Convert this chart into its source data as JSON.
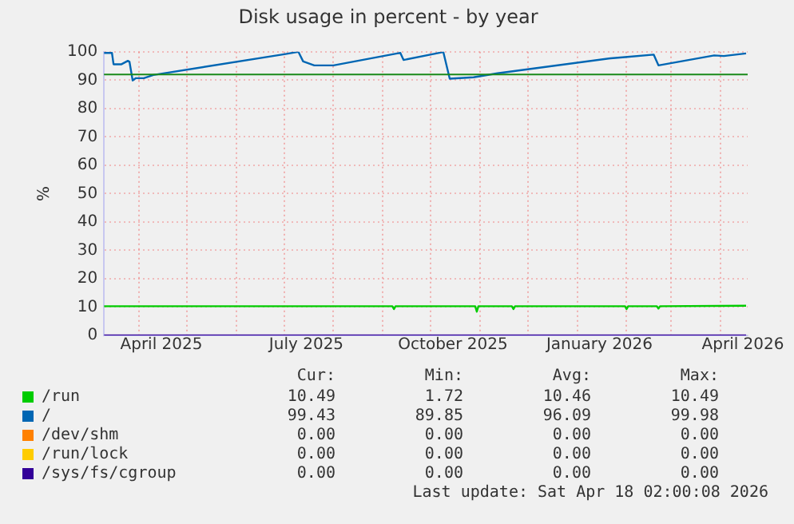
{
  "chart_data": {
    "type": "line",
    "title": "Disk usage in percent - by year",
    "ylabel": "%",
    "xlim": [
      "2025-03-10",
      "2026-04-18"
    ],
    "xticks": [
      {
        "value": "2025-04-01",
        "label": null
      },
      {
        "value": "2025-04-15",
        "label": "April 2025"
      },
      {
        "value": "2025-05-01",
        "label": null
      },
      {
        "value": "2025-06-01",
        "label": null
      },
      {
        "value": "2025-07-01",
        "label": null
      },
      {
        "value": "2025-07-15",
        "label": "July 2025"
      },
      {
        "value": "2025-08-01",
        "label": null
      },
      {
        "value": "2025-09-01",
        "label": null
      },
      {
        "value": "2025-10-01",
        "label": null
      },
      {
        "value": "2025-10-15",
        "label": "October 2025"
      },
      {
        "value": "2025-11-01",
        "label": null
      },
      {
        "value": "2025-12-01",
        "label": null
      },
      {
        "value": "2026-01-01",
        "label": null
      },
      {
        "value": "2026-01-15",
        "label": "January 2026"
      },
      {
        "value": "2026-02-01",
        "label": null
      },
      {
        "value": "2026-03-01",
        "label": null
      },
      {
        "value": "2026-04-01",
        "label": null
      },
      {
        "value": "2026-04-15",
        "label": "April 2026"
      }
    ],
    "ylim": [
      0,
      100
    ],
    "yticks": [
      0,
      10,
      20,
      30,
      40,
      50,
      60,
      70,
      80,
      90,
      100
    ],
    "grid": true,
    "legend": "bottom",
    "marker": "none",
    "line_style": "solid",
    "ref_lines": [
      {
        "axis": "y",
        "value": 92,
        "color": "#1a8a1a"
      }
    ],
    "series": [
      {
        "name": "/run",
        "color": "#00cc00",
        "x": [
          "2025-03-10",
          "2025-09-07",
          "2025-09-08",
          "2025-09-09",
          "2025-10-29",
          "2025-10-30",
          "2025-10-31",
          "2025-11-21",
          "2025-11-22",
          "2025-11-23",
          "2026-01-31",
          "2026-02-01",
          "2026-02-02",
          "2026-02-20",
          "2026-02-21",
          "2026-02-22",
          "2026-04-17"
        ],
        "values": [
          10.3,
          10.3,
          9.3,
          10.3,
          10.3,
          8.4,
          10.3,
          10.3,
          9.3,
          10.3,
          10.3,
          9.3,
          10.3,
          10.3,
          9.5,
          10.3,
          10.5
        ]
      },
      {
        "name": "/",
        "color": "#0066b3",
        "x": [
          "2025-03-10",
          "2025-03-15",
          "2025-03-16",
          "2025-03-21",
          "2025-03-25",
          "2025-03-26",
          "2025-03-28",
          "2025-03-30",
          "2025-04-04",
          "2025-04-10",
          "2025-07-02",
          "2025-07-10",
          "2025-07-13",
          "2025-07-20",
          "2025-08-01",
          "2025-09-10",
          "2025-09-12",
          "2025-09-14",
          "2025-10-09",
          "2025-10-13",
          "2025-10-28",
          "2025-11-12",
          "2026-01-22",
          "2026-01-31",
          "2026-02-18",
          "2026-02-21",
          "2026-03-28",
          "2026-04-03",
          "2026-04-17"
        ],
        "values": [
          99.6,
          99.6,
          95.6,
          95.6,
          96.8,
          96.5,
          89.9,
          90.7,
          90.7,
          91.8,
          99.2,
          100,
          96.6,
          95.2,
          95.2,
          99.4,
          99.6,
          97.1,
          99.9,
          90.5,
          91,
          92.4,
          97.7,
          98.1,
          99,
          95.2,
          98.7,
          98.5,
          99.4
        ]
      },
      {
        "name": "/dev/shm",
        "color": "#ff8000"
      },
      {
        "name": "/run/lock",
        "color": "#ffcc00"
      },
      {
        "name": "/sys/fs/cgroup",
        "color": "#330099",
        "x": [
          "2025-03-10",
          "2026-04-17"
        ],
        "values": [
          0,
          0
        ]
      }
    ],
    "annotations": [
      "Cur:",
      "Min:",
      "Avg:",
      "Max:",
      "10.49",
      "1.72",
      "10.46",
      "10.49",
      "99.43",
      "89.85",
      "96.09",
      "99.98",
      "0.00",
      "0.00",
      "0.00",
      "0.00",
      "0.00",
      "0.00",
      "0.00",
      "0.00",
      "0.00",
      "0.00",
      "0.00",
      "0.00",
      "Last update: Sat Apr 18 02:00:08 2026"
    ]
  }
}
